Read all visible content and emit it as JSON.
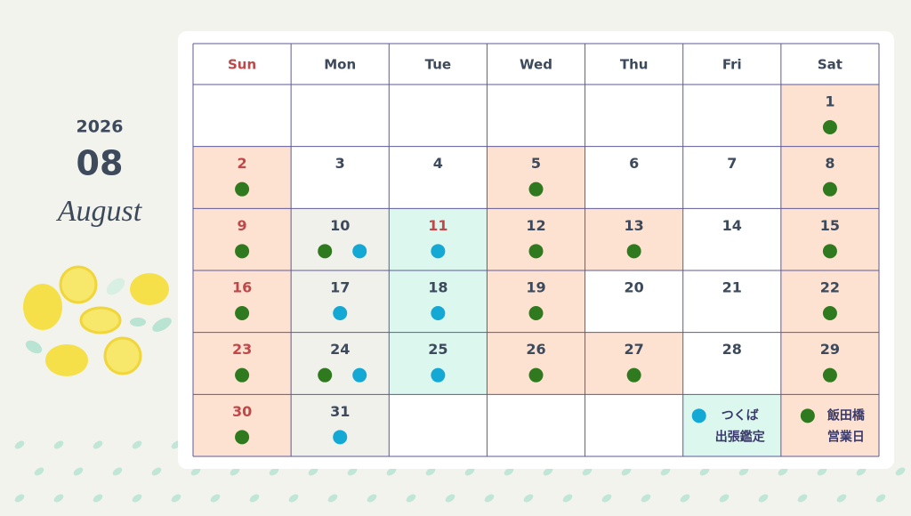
{
  "header": {
    "year": "2026",
    "month": "08",
    "month_name": "August"
  },
  "weekdays": [
    {
      "label": "Sun",
      "color": "#c0484a"
    },
    {
      "label": "Mon",
      "color": "#3d4a5c"
    },
    {
      "label": "Tue",
      "color": "#3d4a5c"
    },
    {
      "label": "Wed",
      "color": "#3d4a5c"
    },
    {
      "label": "Thu",
      "color": "#3d4a5c"
    },
    {
      "label": "Fri",
      "color": "#3d4a5c"
    },
    {
      "label": "Sat",
      "color": "#3d4a5c"
    }
  ],
  "weeks": [
    [
      null,
      null,
      null,
      null,
      null,
      null,
      {
        "day": "1",
        "bg": "#fde2d2",
        "dots": [
          "#2f7a1f"
        ]
      }
    ],
    [
      {
        "day": "2",
        "bg": "#fde2d2",
        "dots": [
          "#2f7a1f"
        ],
        "color": "#c0484a"
      },
      {
        "day": "3"
      },
      {
        "day": "4"
      },
      {
        "day": "5",
        "bg": "#fde2d2",
        "dots": [
          "#2f7a1f"
        ]
      },
      {
        "day": "6"
      },
      {
        "day": "7"
      },
      {
        "day": "8",
        "bg": "#fde2d2",
        "dots": [
          "#2f7a1f"
        ]
      }
    ],
    [
      {
        "day": "9",
        "bg": "#fde2d2",
        "dots": [
          "#2f7a1f"
        ],
        "color": "#c0484a"
      },
      {
        "day": "10",
        "bg": "#f1f1ec",
        "dots": [
          "#2f7a1f",
          "#14a8d4"
        ]
      },
      {
        "day": "11",
        "bg": "#dcf8ee",
        "dots": [
          "#14a8d4"
        ],
        "color": "#c0484a"
      },
      {
        "day": "12",
        "bg": "#fde2d2",
        "dots": [
          "#2f7a1f"
        ]
      },
      {
        "day": "13",
        "bg": "#fde2d2",
        "dots": [
          "#2f7a1f"
        ]
      },
      {
        "day": "14"
      },
      {
        "day": "15",
        "bg": "#fde2d2",
        "dots": [
          "#2f7a1f"
        ]
      }
    ],
    [
      {
        "day": "16",
        "bg": "#fde2d2",
        "dots": [
          "#2f7a1f"
        ],
        "color": "#c0484a"
      },
      {
        "day": "17",
        "bg": "#f1f1ec",
        "dots": [
          "#14a8d4"
        ]
      },
      {
        "day": "18",
        "bg": "#dcf8ee",
        "dots": [
          "#14a8d4"
        ]
      },
      {
        "day": "19",
        "bg": "#fde2d2",
        "dots": [
          "#2f7a1f"
        ]
      },
      {
        "day": "20"
      },
      {
        "day": "21"
      },
      {
        "day": "22",
        "bg": "#fde2d2",
        "dots": [
          "#2f7a1f"
        ]
      }
    ],
    [
      {
        "day": "23",
        "bg": "#fde2d2",
        "dots": [
          "#2f7a1f"
        ],
        "color": "#c0484a"
      },
      {
        "day": "24",
        "bg": "#f1f1ec",
        "dots": [
          "#2f7a1f",
          "#14a8d4"
        ]
      },
      {
        "day": "25",
        "bg": "#dcf8ee",
        "dots": [
          "#14a8d4"
        ]
      },
      {
        "day": "26",
        "bg": "#fde2d2",
        "dots": [
          "#2f7a1f"
        ]
      },
      {
        "day": "27",
        "bg": "#fde2d2",
        "dots": [
          "#2f7a1f"
        ]
      },
      {
        "day": "28"
      },
      {
        "day": "29",
        "bg": "#fde2d2",
        "dots": [
          "#2f7a1f"
        ]
      }
    ],
    [
      {
        "day": "30",
        "bg": "#fde2d2",
        "dots": [
          "#2f7a1f"
        ],
        "color": "#c0484a"
      },
      {
        "day": "31",
        "bg": "#f1f1ec",
        "dots": [
          "#14a8d4"
        ]
      },
      null,
      null,
      null,
      {
        "legend": [
          "つくば",
          "出張鑑定"
        ],
        "bg": "#dcf8ee",
        "dots": [
          "#14a8d4"
        ]
      },
      {
        "legend": [
          "飯田橋",
          "営業日"
        ],
        "bg": "#fde2d2",
        "dots": [
          "#2f7a1f"
        ]
      }
    ]
  ]
}
